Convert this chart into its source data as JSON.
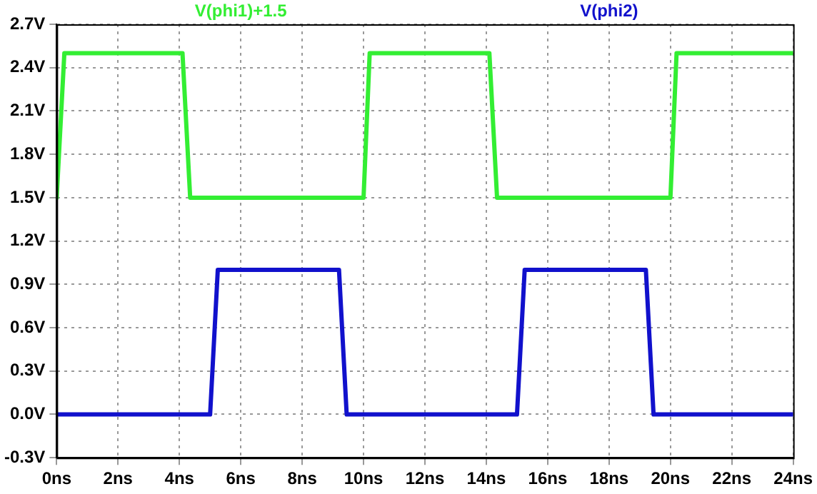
{
  "chart_data": {
    "type": "line",
    "grid": true,
    "legend": "top",
    "marker": "none",
    "line_style": "solid",
    "xlim": [
      0,
      24
    ],
    "xticks": [
      {
        "value": 0,
        "label": "0ns"
      },
      {
        "value": 2,
        "label": "2ns"
      },
      {
        "value": 4,
        "label": "4ns"
      },
      {
        "value": 6,
        "label": "6ns"
      },
      {
        "value": 8,
        "label": "8ns"
      },
      {
        "value": 10,
        "label": "10ns"
      },
      {
        "value": 12,
        "label": "12ns"
      },
      {
        "value": 14,
        "label": "14ns"
      },
      {
        "value": 16,
        "label": "16ns"
      },
      {
        "value": 18,
        "label": "18ns"
      },
      {
        "value": 20,
        "label": "20ns"
      },
      {
        "value": 22,
        "label": "22ns"
      },
      {
        "value": 24,
        "label": "24ns"
      }
    ],
    "ylim": [
      -0.3,
      2.7
    ],
    "yticks": [
      {
        "value": -0.3,
        "label": "-0.3V"
      },
      {
        "value": 0,
        "label": "0.0V"
      },
      {
        "value": 0.3,
        "label": "0.3V"
      },
      {
        "value": 0.6,
        "label": "0.6V"
      },
      {
        "value": 0.9,
        "label": "0.9V"
      },
      {
        "value": 1.2,
        "label": "1.2V"
      },
      {
        "value": 1.5,
        "label": "1.5V"
      },
      {
        "value": 1.8,
        "label": "1.8V"
      },
      {
        "value": 2.1,
        "label": "2.1V"
      },
      {
        "value": 2.4,
        "label": "2.4V"
      },
      {
        "value": 2.7,
        "label": "2.7V"
      }
    ],
    "series": [
      {
        "name": "V(phi1)+1.5",
        "color": "#33ee33",
        "x": [
          0,
          0.25,
          4.1,
          4.35,
          10.0,
          10.2,
          14.1,
          14.35,
          20.0,
          20.2,
          24
        ],
        "values": [
          1.5,
          2.5,
          2.5,
          1.5,
          1.5,
          2.5,
          2.5,
          1.5,
          1.5,
          2.5,
          2.5
        ]
      },
      {
        "name": "V(phi2)",
        "color": "#1111cc",
        "x": [
          0,
          5.0,
          5.25,
          9.2,
          9.45,
          15.0,
          15.25,
          19.2,
          19.45,
          24
        ],
        "values": [
          0,
          0,
          1,
          1,
          0,
          0,
          1,
          1,
          0,
          0
        ]
      }
    ]
  }
}
